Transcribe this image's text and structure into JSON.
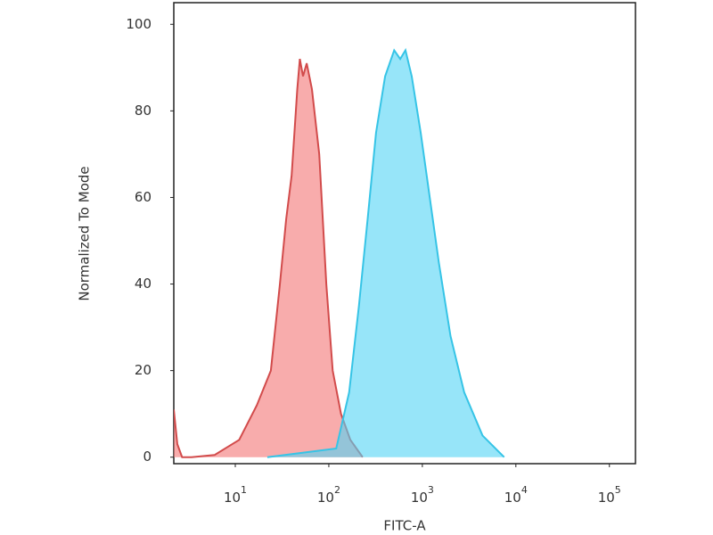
{
  "chart_data": {
    "type": "area",
    "xlabel": "FITC-A",
    "ylabel": "Normalized To Mode",
    "xscale": "log",
    "xlim": [
      2.2,
      190000
    ],
    "ylim": [
      -1.5,
      105
    ],
    "xticks": [
      {
        "value": 10,
        "label": "10",
        "sup": "1"
      },
      {
        "value": 100,
        "label": "10",
        "sup": "2"
      },
      {
        "value": 1000,
        "label": "10",
        "sup": "3"
      },
      {
        "value": 10000,
        "label": "10",
        "sup": "4"
      },
      {
        "value": 100000,
        "label": "10",
        "sup": "5"
      }
    ],
    "yticks": [
      0,
      20,
      40,
      60,
      80,
      100
    ],
    "series": [
      {
        "color": "#d24b4b",
        "fill": "#f47474",
        "x": [
          2.2,
          2.4,
          2.7,
          3.4,
          6,
          11,
          17,
          24,
          30,
          35,
          40,
          46,
          49,
          53,
          58,
          66,
          79,
          94,
          110,
          135,
          170,
          230
        ],
        "values": [
          11,
          3,
          0,
          0,
          0.5,
          4,
          12,
          20,
          40,
          55,
          65,
          85,
          92,
          88,
          91,
          85,
          70,
          40,
          20,
          10,
          4,
          0
        ]
      },
      {
        "color": "#36c4e6",
        "fill": "#52d3f5",
        "x": [
          22,
          120,
          165,
          210,
          260,
          320,
          400,
          500,
          580,
          660,
          770,
          960,
          1200,
          1500,
          2000,
          2800,
          4400,
          7500
        ],
        "values": [
          0,
          2,
          15,
          35,
          55,
          75,
          88,
          94,
          92,
          94,
          88,
          75,
          60,
          45,
          28,
          15,
          5,
          0
        ]
      }
    ]
  }
}
